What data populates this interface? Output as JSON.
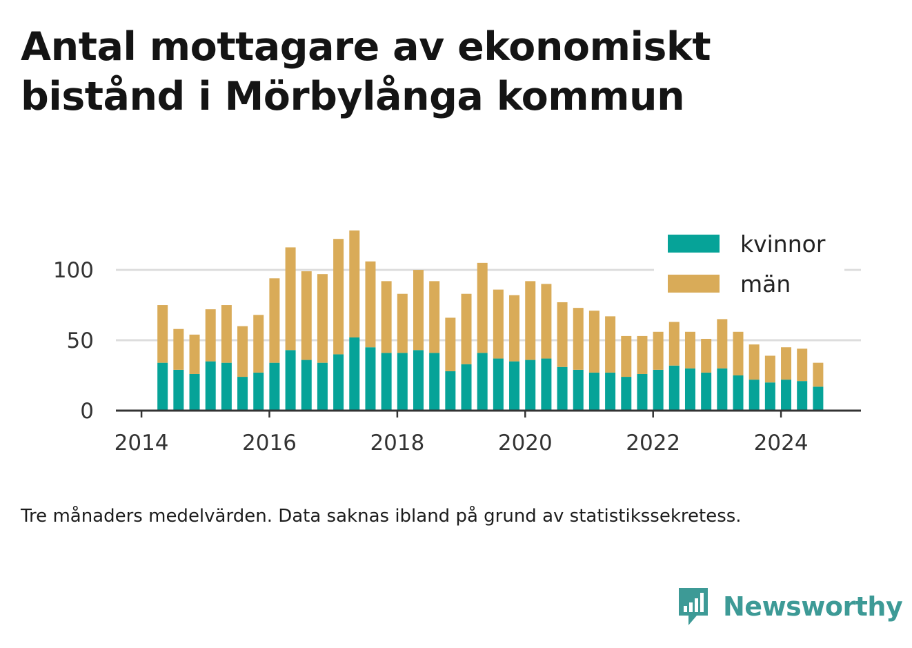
{
  "title_lines": [
    "Antal mottagare av ekonomiskt",
    "bistånd i Mörbylånga kommun"
  ],
  "caption": "Tre månaders medelvärden. Data saknas ibland på grund av statistikssekretess.",
  "brand": {
    "name": "Newsworthy",
    "icon": "newsworthy-logo-icon",
    "color": "#3d9a96"
  },
  "colors": {
    "kvinnor": "#06a398",
    "man": "#d9ab58",
    "grid": "#dddddd",
    "axis": "#333333"
  },
  "chart_data": {
    "type": "bar",
    "stacked": true,
    "title": "Antal mottagare av ekonomiskt bistånd i Mörbylånga kommun",
    "xlabel": "",
    "ylabel": "",
    "x_ticks": [
      "2014",
      "2016",
      "2018",
      "2020",
      "2022",
      "2024"
    ],
    "y_ticks": [
      0,
      50,
      100
    ],
    "xlim": [
      2013.6,
      2025.25
    ],
    "ylim": [
      0,
      127
    ],
    "grid": "horizontal",
    "legend_position": "top-right",
    "x": [
      2014.33,
      2014.58,
      2014.83,
      2015.08,
      2015.33,
      2015.58,
      2015.83,
      2016.08,
      2016.33,
      2016.58,
      2016.83,
      2017.08,
      2017.33,
      2017.58,
      2017.83,
      2018.08,
      2018.33,
      2018.58,
      2018.83,
      2019.08,
      2019.33,
      2019.58,
      2019.83,
      2020.08,
      2020.33,
      2020.58,
      2020.83,
      2021.08,
      2021.33,
      2021.58,
      2021.83,
      2022.08,
      2022.33,
      2022.58,
      2022.83,
      2023.08,
      2023.33,
      2023.58,
      2023.83,
      2024.08,
      2024.33,
      2024.58
    ],
    "series": [
      {
        "name": "kvinnor",
        "color": "#06a398",
        "values": [
          34,
          29,
          26,
          35,
          34,
          24,
          27,
          34,
          43,
          36,
          34,
          40,
          52,
          45,
          41,
          41,
          43,
          41,
          28,
          33,
          41,
          37,
          35,
          36,
          37,
          31,
          29,
          27,
          27,
          24,
          26,
          29,
          32,
          30,
          27,
          30,
          25,
          22,
          20,
          22,
          21,
          17
        ]
      },
      {
        "name": "män",
        "color": "#d9ab58",
        "values": [
          41,
          29,
          28,
          37,
          41,
          36,
          41,
          60,
          73,
          63,
          63,
          82,
          76,
          61,
          51,
          42,
          57,
          51,
          38,
          50,
          64,
          49,
          47,
          56,
          53,
          46,
          44,
          44,
          40,
          29,
          27,
          27,
          31,
          26,
          24,
          35,
          31,
          25,
          19,
          23,
          23,
          17
        ]
      }
    ]
  }
}
